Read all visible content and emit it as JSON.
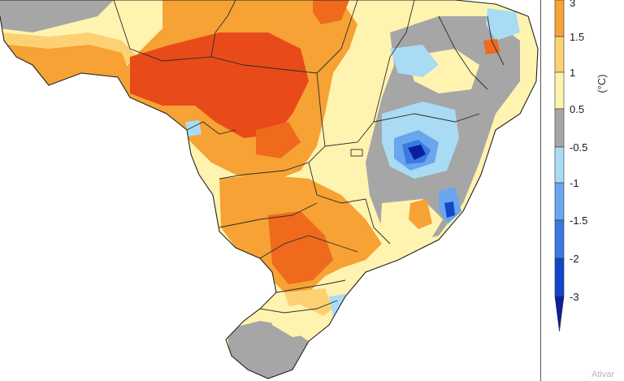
{
  "map": {
    "region": "Brazil",
    "variable": "temperature anomaly",
    "colors": {
      "below_-3": "#0a1f9c",
      "-3_-2": "#1446cc",
      "-2_-1.5": "#3a7ae0",
      "-1.5_-1": "#6aa6ee",
      "-1_-0.5": "#a9dcf4",
      "-0.5_0.5": "#a6a6a6",
      "0.5_1": "#fff3b0",
      "1_1.5": "#fcd174",
      "1.5_2": "#f6a234",
      "2_3": "#ef6a1c",
      "above_3": "#e94a1a"
    }
  },
  "legend": {
    "unit": "(°C)",
    "ticks": [
      "3",
      "1.5",
      "1",
      "0.5",
      "-0.5",
      "-1",
      "-1.5",
      "-2",
      "-3"
    ],
    "bins": [
      "#ef6a1c",
      "#f6a234",
      "#fcd174",
      "#fff3b0",
      "#a6a6a6",
      "#a9dcf4",
      "#6aa6ee",
      "#3a7ae0",
      "#1446cc",
      "#0a1f9c"
    ]
  },
  "watermark": "Ativar"
}
